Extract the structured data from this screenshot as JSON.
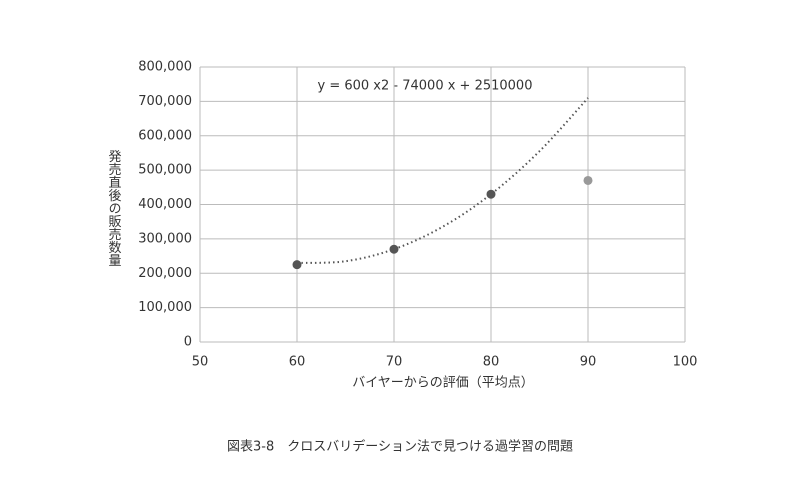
{
  "chart_data": {
    "type": "scatter",
    "annotation": "y = 600 x2 - 74000 x + 2510000",
    "x_label": "バイヤーからの評価（平均点）",
    "y_label": "発売直後の販売数量",
    "caption": "図表3-8　クロスバリデーション法で見つける過学習の問題",
    "x": [
      60,
      70,
      80,
      90
    ],
    "values": [
      225000,
      270000,
      430000,
      470000
    ],
    "colors": [
      "#555555",
      "#555555",
      "#555555",
      "#999999"
    ],
    "trendline": {
      "x": [
        60,
        65,
        70,
        75,
        80,
        85,
        90
      ],
      "values": [
        230000,
        235000,
        270000,
        335000,
        430000,
        555000,
        710000
      ],
      "color": "#555555"
    },
    "xlim": [
      50,
      100
    ],
    "xticks": [
      50,
      60,
      70,
      80,
      90,
      100
    ],
    "ylim": [
      0,
      800000
    ],
    "yticks": [
      0,
      {
        "value": 100000,
        "label": "100,000"
      },
      {
        "value": 200000,
        "label": "200,000"
      },
      {
        "value": 300000,
        "label": "300,000"
      },
      {
        "value": 400000,
        "label": "400,000"
      },
      {
        "value": 500000,
        "label": "500,000"
      },
      {
        "value": 600000,
        "label": "600,000"
      },
      {
        "value": 700000,
        "label": "700,000"
      },
      {
        "value": 800000,
        "label": "800,000"
      }
    ],
    "grid": true
  }
}
